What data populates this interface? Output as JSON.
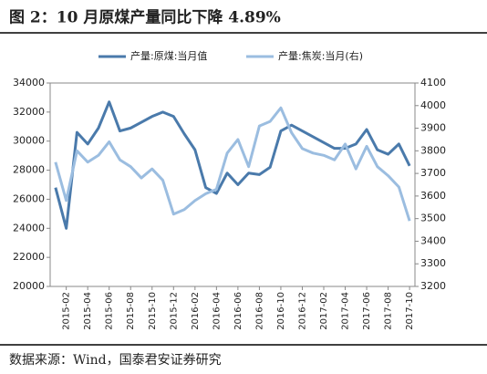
{
  "chart_data": {
    "type": "line",
    "title": "图 2：10 月原煤产量同比下降 4.89%",
    "source": "数据来源：Wind，国泰君安证券研究",
    "categories": [
      null,
      "2015-02",
      null,
      "2015-04",
      null,
      "2015-06",
      null,
      "2015-08",
      null,
      "2015-10",
      null,
      "2015-12",
      null,
      "2016-02",
      null,
      "2016-04",
      null,
      "2016-06",
      null,
      "2016-08",
      null,
      "2016-10",
      null,
      "2016-12",
      null,
      "2017-02",
      null,
      "2017-04",
      null,
      "2017-06",
      null,
      "2017-08",
      null,
      "2017-10"
    ],
    "series": [
      {
        "name": "产量:原煤:当月值",
        "color": "#4a7aab",
        "values": [
          26800,
          24000,
          30600,
          29800,
          30900,
          32700,
          30700,
          30900,
          31300,
          31700,
          32000,
          31700,
          30500,
          29400,
          26800,
          26400,
          27800,
          27000,
          27800,
          27700,
          28200,
          30700,
          31100,
          30700,
          30300,
          29900,
          29500,
          29500,
          29800,
          30800,
          29400,
          29100,
          29800,
          28300
        ]
      },
      {
        "name": "产量:焦炭:当月(右)",
        "color": "#9bbde0",
        "axis": "y2",
        "values": [
          3750,
          3580,
          3800,
          3750,
          3780,
          3840,
          3760,
          3730,
          3680,
          3720,
          3670,
          3520,
          3540,
          3580,
          3610,
          3630,
          3790,
          3850,
          3730,
          3910,
          3930,
          3990,
          3880,
          3810,
          3790,
          3780,
          3760,
          3830,
          3720,
          3820,
          3730,
          3690,
          3640,
          3490
        ]
      }
    ],
    "ylim": [
      20000,
      34000
    ],
    "yticks": [
      20000,
      22000,
      24000,
      26000,
      28000,
      30000,
      32000,
      34000
    ],
    "y2lim": [
      3200,
      4100
    ],
    "y2ticks": [
      3200,
      3300,
      3400,
      3500,
      3600,
      3700,
      3800,
      3900,
      4000,
      4100
    ],
    "legend": "top"
  }
}
